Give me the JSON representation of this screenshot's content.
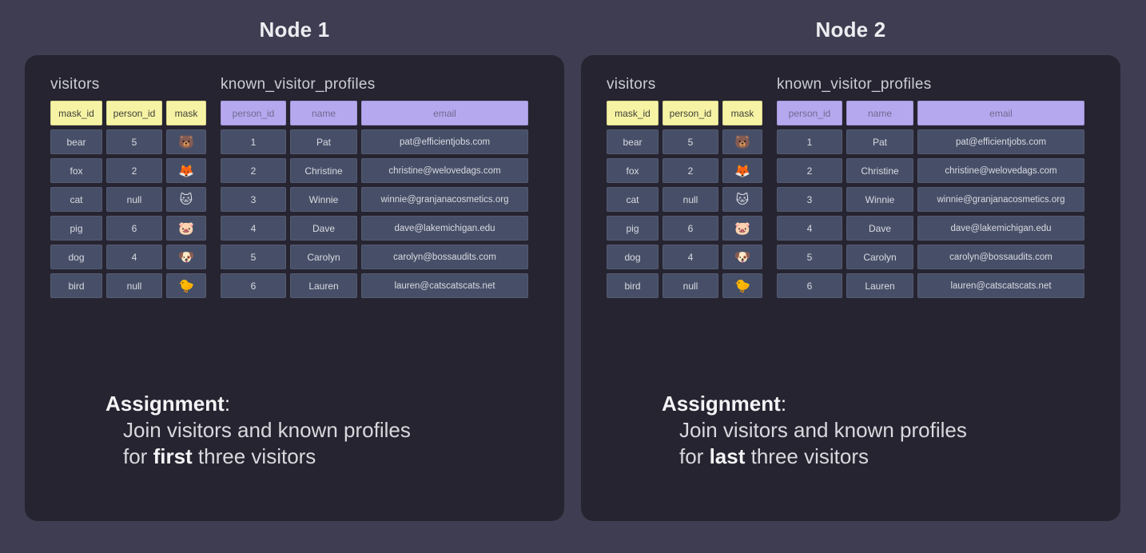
{
  "colors": {
    "page_background": "#3E3D51",
    "panel_background": "#262430",
    "cell_background": "#474F68",
    "visitors_header": "#F6F3A4",
    "profiles_header": "#B6A8EF",
    "cell_text": "#D9DBE1",
    "title_text": "#EDEDF1"
  },
  "tables": {
    "visitors": {
      "title": "visitors",
      "columns": [
        "mask_id",
        "person_id",
        "mask"
      ],
      "rows": [
        [
          "bear",
          "5",
          "🐻"
        ],
        [
          "fox",
          "2",
          "🦊"
        ],
        [
          "cat",
          "null",
          "🐱"
        ],
        [
          "pig",
          "6",
          "🐷"
        ],
        [
          "dog",
          "4",
          "🐶"
        ],
        [
          "bird",
          "null",
          "🐤"
        ]
      ],
      "emoji_column_index": 2,
      "mask_icons": [
        "bear-face-icon",
        "fox-face-icon",
        "cat-face-icon",
        "pig-face-icon",
        "dog-face-icon",
        "baby-chick-icon"
      ]
    },
    "known_visitor_profiles": {
      "title": "known_visitor_profiles",
      "columns": [
        "person_id",
        "name",
        "email"
      ],
      "rows": [
        [
          "1",
          "Pat",
          "pat@efficientjobs.com"
        ],
        [
          "2",
          "Christine",
          "christine@welovedags.com"
        ],
        [
          "3",
          "Winnie",
          "winnie@granjanacosmetics.org"
        ],
        [
          "4",
          "Dave",
          "dave@lakemichigan.edu"
        ],
        [
          "5",
          "Carolyn",
          "carolyn@bossaudits.com"
        ],
        [
          "6",
          "Lauren",
          "lauren@catscatscats.net"
        ]
      ],
      "emoji_column_index": -1
    }
  },
  "nodes": [
    {
      "title": "Node 1",
      "assignment": {
        "label": "Assignment",
        "colon": ":",
        "line1": "Join visitors and known profiles",
        "line2_pre": "for ",
        "line2_emph": "first",
        "line2_post": " three visitors"
      }
    },
    {
      "title": "Node 2",
      "assignment": {
        "label": "Assignment",
        "colon": ":",
        "line1": "Join visitors and known profiles",
        "line2_pre": "for ",
        "line2_emph": "last",
        "line2_post": " three visitors"
      }
    }
  ]
}
